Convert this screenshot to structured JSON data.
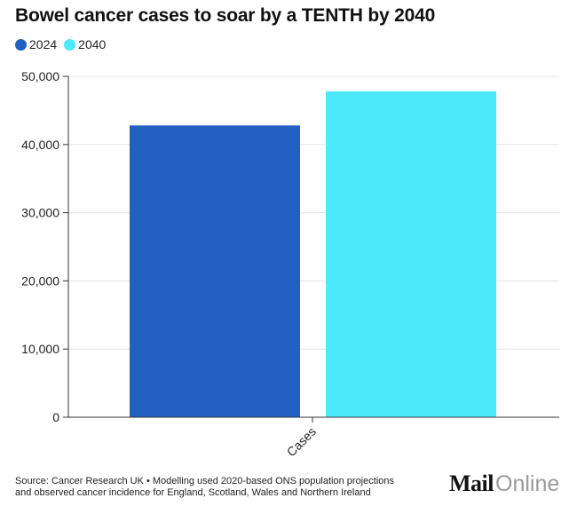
{
  "chart_data": {
    "type": "bar",
    "title": "Bowel cancer cases to soar by a TENTH by 2040",
    "categories": [
      "Cases"
    ],
    "series": [
      {
        "name": "2024",
        "values": [
          42800
        ],
        "color": "#2361c1"
      },
      {
        "name": "2040",
        "values": [
          47800
        ],
        "color": "#4ce9fb"
      }
    ],
    "yticks": [
      "0",
      "10,000",
      "20,000",
      "30,000",
      "40,000",
      "50,000"
    ],
    "ylim": [
      0,
      50000
    ],
    "grid": true,
    "legend_position": "top-left"
  },
  "source": {
    "line1": "Source: Cancer Research UK • Modelling used 2020-based ONS population projections",
    "line2": "and observed cancer incidence for England, Scotland, Wales and Northern Ireland"
  },
  "logo": {
    "mail": "Mail",
    "online": "Online"
  }
}
